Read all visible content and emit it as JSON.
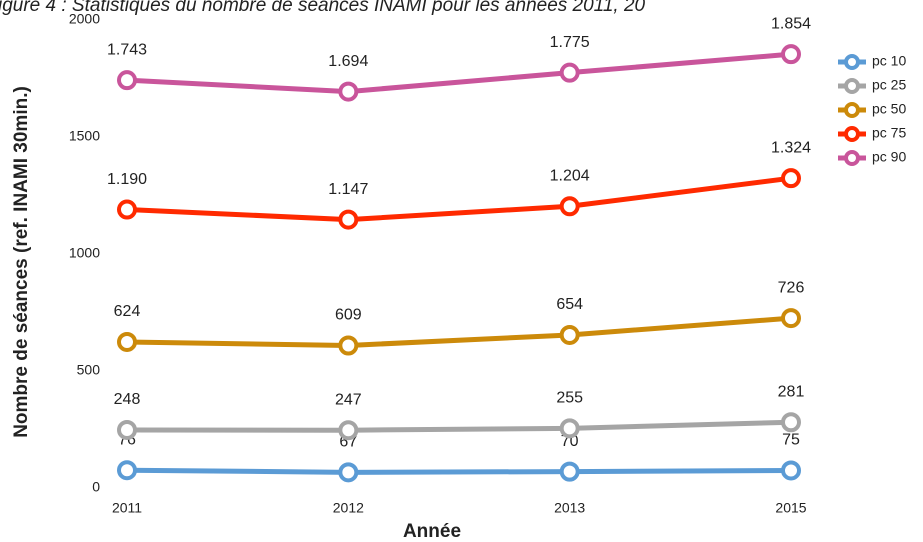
{
  "chart_data": {
    "type": "line",
    "title": "igure 4 : Statistiques du nombre de séances INAMI pour les années 2011, 20",
    "xlabel": "Année",
    "ylabel": "Nombre de séances (ref. INAMI 30min.)",
    "categories": [
      "2011",
      "2012",
      "2013",
      "2015"
    ],
    "ylim": [
      0,
      2000
    ],
    "yticks": [
      0,
      500,
      1000,
      1500,
      2000
    ],
    "grid": false,
    "legend": "right",
    "series": [
      {
        "name": "pc 10",
        "color": "#5b9bd5",
        "values": [
          76,
          67,
          70,
          75
        ]
      },
      {
        "name": "pc 25",
        "color": "#a5a5a5",
        "values": [
          248,
          247,
          255,
          281
        ]
      },
      {
        "name": "pc 50",
        "color": "#cc8a0a",
        "values": [
          624,
          609,
          654,
          726
        ]
      },
      {
        "name": "pc 75",
        "color": "#ff2a00",
        "values": [
          1190,
          1147,
          1204,
          1324
        ],
        "value_labels": [
          "1.190",
          "1.147",
          "1.204",
          "1.324"
        ]
      },
      {
        "name": "pc 90",
        "color": "#c9559b",
        "values": [
          1743,
          1694,
          1775,
          1854
        ],
        "value_labels": [
          "1.743",
          "1.694",
          "1.775",
          "1.854"
        ]
      }
    ]
  }
}
